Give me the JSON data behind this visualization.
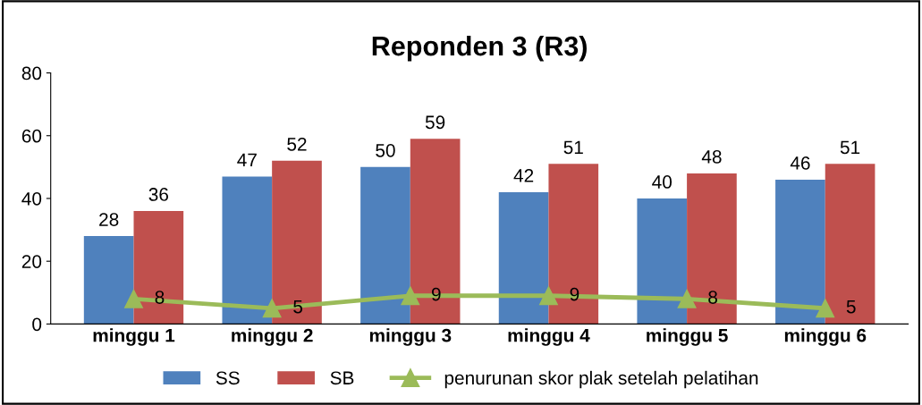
{
  "chart_data": {
    "type": "bar",
    "title": "Reponden 3 (R3)",
    "categories": [
      "minggu 1",
      "minggu 2",
      "minggu 3",
      "minggu 4",
      "minggu 5",
      "minggu 6"
    ],
    "series": [
      {
        "name": "SS",
        "color": "#4f81bd",
        "values": [
          28,
          47,
          50,
          42,
          40,
          46
        ]
      },
      {
        "name": "SB",
        "color": "#c0504d",
        "values": [
          36,
          52,
          59,
          51,
          48,
          51
        ]
      },
      {
        "name": "penurunan skor plak setelah pelatihan",
        "type": "line",
        "color": "#9bbb59",
        "values": [
          8,
          5,
          9,
          9,
          8,
          5
        ],
        "marker": "triangle"
      }
    ],
    "ylim": [
      0,
      80
    ],
    "yticks": [
      0,
      20,
      40,
      60,
      80
    ],
    "grid": false,
    "legend": "bottom",
    "data_labels": true
  }
}
